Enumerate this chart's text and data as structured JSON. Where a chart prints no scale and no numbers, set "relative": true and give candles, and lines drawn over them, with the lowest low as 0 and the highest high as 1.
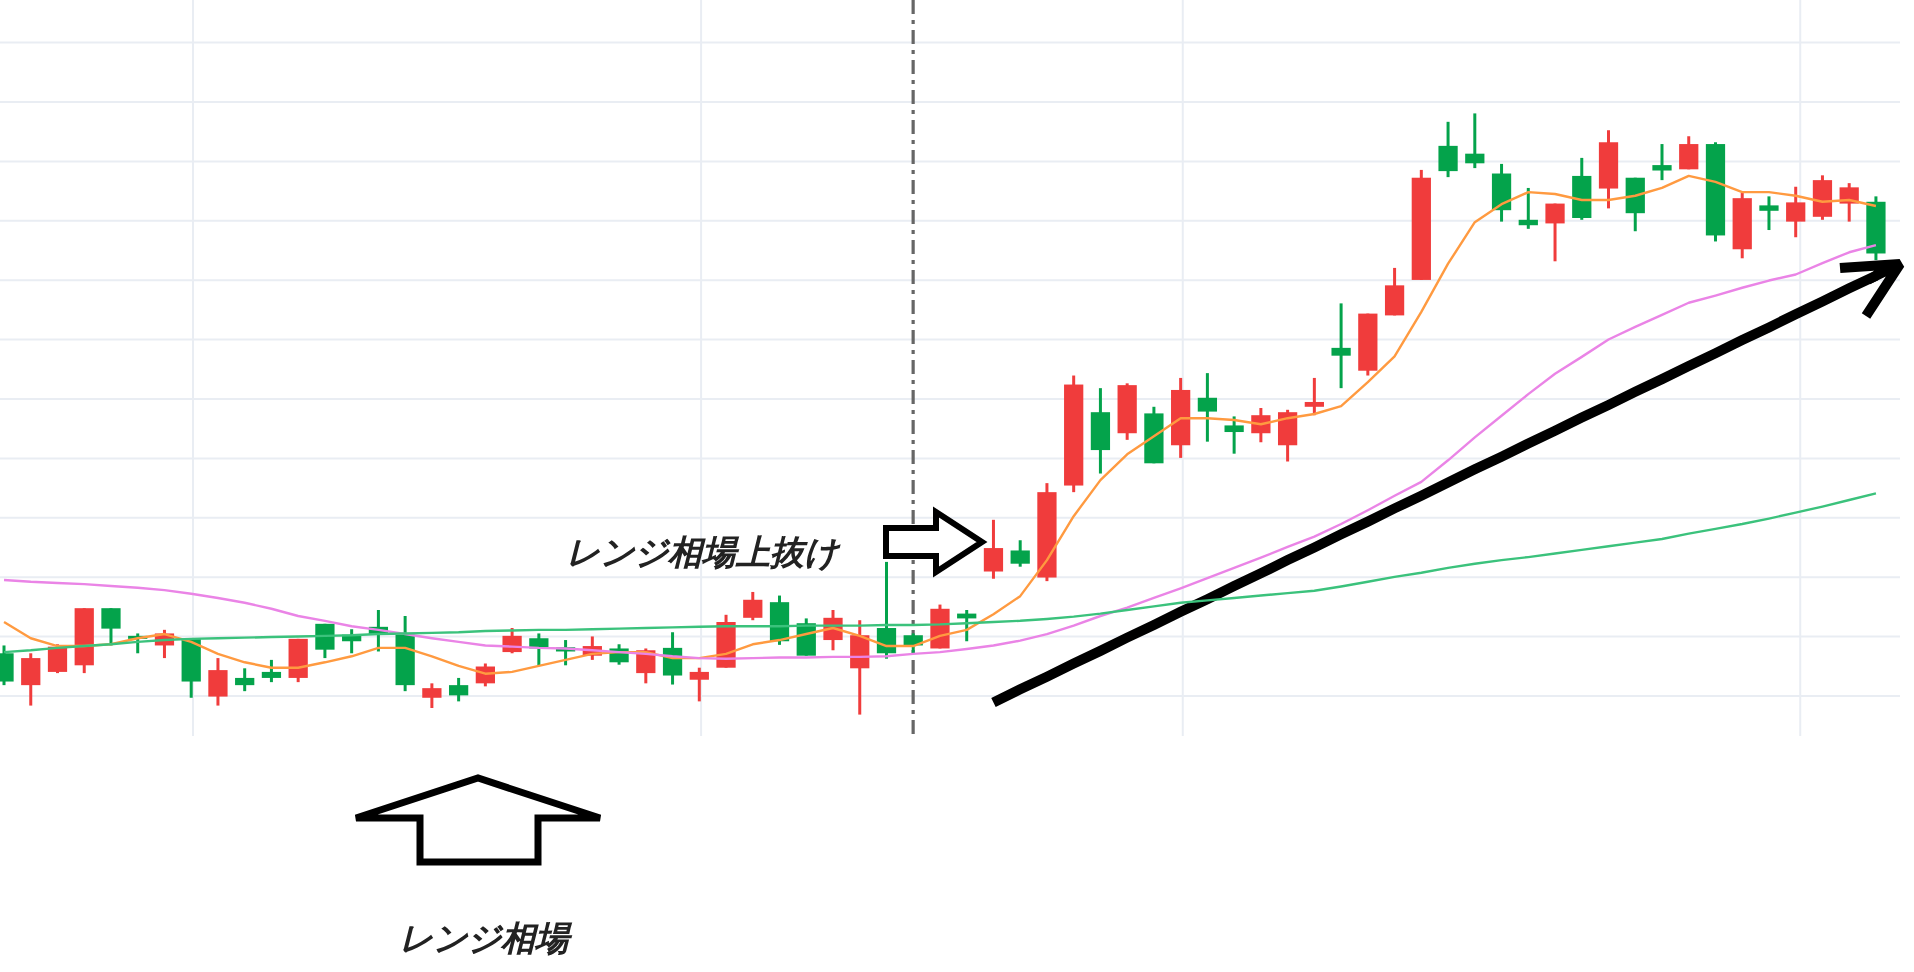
{
  "chart_data": {
    "type": "candlestick",
    "relative": true,
    "grid": true,
    "categories": [
      null,
      null,
      null,
      null,
      null,
      null,
      null,
      null,
      null,
      null,
      null,
      null,
      null,
      null,
      null,
      null,
      null,
      null,
      null,
      null,
      null,
      null,
      null,
      null,
      null,
      null,
      null,
      null,
      null,
      null,
      null,
      null,
      null,
      null,
      null,
      null,
      null,
      null,
      null,
      null,
      null,
      null,
      null,
      null,
      null,
      null,
      null,
      null,
      null,
      null,
      null,
      null,
      null,
      null,
      null,
      null,
      null,
      null,
      null,
      null,
      null,
      null,
      null,
      null,
      null,
      null,
      null,
      null,
      null,
      null,
      null
    ],
    "ohlc": [
      [
        0.102,
        0.115,
        0.049,
        0.055
      ],
      [
        0.049,
        0.102,
        0.015,
        0.094
      ],
      [
        0.071,
        0.117,
        0.069,
        0.113
      ],
      [
        0.082,
        0.177,
        0.069,
        0.177
      ],
      [
        0.177,
        0.177,
        0.115,
        0.143
      ],
      [
        0.131,
        0.135,
        0.102,
        0.127
      ],
      [
        0.115,
        0.141,
        0.094,
        0.135
      ],
      [
        0.126,
        0.126,
        0.028,
        0.055
      ],
      [
        0.03,
        0.094,
        0.015,
        0.074
      ],
      [
        0.061,
        0.077,
        0.039,
        0.049
      ],
      [
        0.071,
        0.091,
        0.054,
        0.061
      ],
      [
        0.061,
        0.126,
        0.054,
        0.126
      ],
      [
        0.151,
        0.151,
        0.094,
        0.108
      ],
      [
        0.133,
        0.142,
        0.102,
        0.122
      ],
      [
        0.146,
        0.174,
        0.105,
        0.133
      ],
      [
        0.133,
        0.164,
        0.039,
        0.049
      ],
      [
        0.028,
        0.052,
        0.011,
        0.044
      ],
      [
        0.049,
        0.061,
        0.022,
        0.032
      ],
      [
        0.052,
        0.085,
        0.047,
        0.08
      ],
      [
        0.104,
        0.144,
        0.102,
        0.131
      ],
      [
        0.127,
        0.135,
        0.082,
        0.11
      ],
      [
        0.112,
        0.124,
        0.082,
        0.105
      ],
      [
        0.098,
        0.13,
        0.091,
        0.114
      ],
      [
        0.11,
        0.117,
        0.083,
        0.087
      ],
      [
        0.069,
        0.11,
        0.052,
        0.107
      ],
      [
        0.111,
        0.137,
        0.05,
        0.065
      ],
      [
        0.058,
        0.078,
        0.022,
        0.071
      ],
      [
        0.078,
        0.166,
        0.078,
        0.154
      ],
      [
        0.161,
        0.204,
        0.157,
        0.191
      ],
      [
        0.187,
        0.198,
        0.116,
        0.122
      ],
      [
        0.152,
        0.16,
        0.098,
        0.098
      ],
      [
        0.124,
        0.174,
        0.107,
        0.161
      ],
      [
        0.077,
        0.157,
        0,
        0.132
      ],
      [
        0.144,
        0.254,
        0.093,
        0.102
      ],
      [
        0.132,
        0.135,
        0.102,
        0.115
      ],
      [
        0.11,
        0.183,
        0.11,
        0.176
      ],
      [
        0.168,
        0.174,
        0.122,
        0.16
      ],
      [
        0.238,
        0.324,
        0.226,
        0.277
      ],
      [
        0.273,
        0.29,
        0.246,
        0.251
      ],
      [
        0.228,
        0.385,
        0.222,
        0.37
      ],
      [
        0.381,
        0.564,
        0.37,
        0.549
      ],
      [
        0.503,
        0.543,
        0.401,
        0.44
      ],
      [
        0.468,
        0.551,
        0.457,
        0.548
      ],
      [
        0.501,
        0.512,
        0.418,
        0.418
      ],
      [
        0.448,
        0.56,
        0.427,
        0.54
      ],
      [
        0.527,
        0.568,
        0.454,
        0.504
      ],
      [
        0.481,
        0.496,
        0.434,
        0.47
      ],
      [
        0.468,
        0.51,
        0.453,
        0.498
      ],
      [
        0.448,
        0.507,
        0.421,
        0.503
      ],
      [
        0.512,
        0.56,
        0.498,
        0.52
      ],
      [
        0.61,
        0.684,
        0.543,
        0.597
      ],
      [
        0.572,
        0.667,
        0.564,
        0.667
      ],
      [
        0.664,
        0.743,
        0.664,
        0.714
      ],
      [
        0.723,
        0.906,
        0.723,
        0.893
      ],
      [
        0.946,
        0.986,
        0.894,
        0.904
      ],
      [
        0.933,
        1,
        0.909,
        0.917
      ],
      [
        0.9,
        0.916,
        0.82,
        0.839
      ],
      [
        0.823,
        0.876,
        0.808,
        0.814
      ],
      [
        0.817,
        0.85,
        0.754,
        0.85
      ],
      [
        0.896,
        0.926,
        0.823,
        0.826
      ],
      [
        0.875,
        0.972,
        0.842,
        0.952
      ],
      [
        0.893,
        0.893,
        0.804,
        0.834
      ],
      [
        0.914,
        0.949,
        0.889,
        0.905
      ],
      [
        0.907,
        0.962,
        0.907,
        0.949
      ],
      [
        0.949,
        0.952,
        0.787,
        0.797
      ],
      [
        0.774,
        0.868,
        0.759,
        0.859
      ],
      [
        0.847,
        0.862,
        0.806,
        0.838
      ],
      [
        0.82,
        0.878,
        0.794,
        0.852
      ],
      [
        0.828,
        0.897,
        0.823,
        0.889
      ],
      [
        0.85,
        0.884,
        0.82,
        0.877
      ],
      [
        0.853,
        0.862,
        0.756,
        0.767
      ]
    ],
    "colors": [
      "#04a34b",
      "#f03c3c",
      "#f03c3c",
      "#f03c3c",
      "#04a34b",
      "#04a34b",
      "#f03c3c",
      "#04a34b",
      "#f03c3c",
      "#04a34b",
      "#04a34b",
      "#f03c3c",
      "#04a34b",
      "#04a34b",
      "#04a34b",
      "#04a34b",
      "#f03c3c",
      "#04a34b",
      "#f03c3c",
      "#f03c3c",
      "#04a34b",
      "#04a34b",
      "#f03c3c",
      "#04a34b",
      "#f03c3c",
      "#04a34b",
      "#f03c3c",
      "#f03c3c",
      "#f03c3c",
      "#04a34b",
      "#04a34b",
      "#f03c3c",
      "#f03c3c",
      "#04a34b",
      "#04a34b",
      "#f03c3c",
      "#04a34b",
      "#f03c3c",
      "#04a34b",
      "#f03c3c",
      "#f03c3c",
      "#04a34b",
      "#f03c3c",
      "#04a34b",
      "#f03c3c",
      "#04a34b",
      "#04a34b",
      "#f03c3c",
      "#f03c3c",
      "#f03c3c",
      "#04a34b",
      "#f03c3c",
      "#f03c3c",
      "#f03c3c",
      "#04a34b",
      "#04a34b",
      "#04a34b",
      "#04a34b",
      "#f03c3c",
      "#04a34b",
      "#f03c3c",
      "#04a34b",
      "#04a34b",
      "#f03c3c",
      "#04a34b",
      "#f03c3c",
      "#04a34b",
      "#f03c3c",
      "#f03c3c",
      "#f03c3c",
      "#04a34b"
    ],
    "series": [
      {
        "type": "line",
        "color": "#000000",
        "values": [
          null,
          null,
          null,
          null,
          null,
          null,
          null,
          null,
          null,
          null,
          null,
          null,
          null,
          null,
          null,
          null,
          null,
          null,
          null,
          null,
          null,
          null,
          null,
          null,
          null,
          null,
          null,
          null,
          null,
          null,
          null,
          null,
          null,
          null,
          null,
          null,
          null,
          0.02,
          0.042,
          0.063,
          0.085,
          0.106,
          0.128,
          0.149,
          0.171,
          0.192,
          0.214,
          0.235,
          0.257,
          0.278,
          0.3,
          0.321,
          0.343,
          0.364,
          0.386,
          0.408,
          0.429,
          0.451,
          0.472,
          0.494,
          0.515,
          0.537,
          0.558,
          0.58,
          0.601,
          0.623,
          0.644,
          0.666,
          0.687,
          0.709,
          0.73
        ]
      },
      {
        "type": "line",
        "color": "#ff9a40",
        "values": [
          0.154,
          0.127,
          0.114,
          0.114,
          0.117,
          0.127,
          0.134,
          0.121,
          0.101,
          0.087,
          0.078,
          0.078,
          0.087,
          0.097,
          0.111,
          0.111,
          0.097,
          0.081,
          0.068,
          0.071,
          0.081,
          0.091,
          0.101,
          0.104,
          0.104,
          0.094,
          0.094,
          0.101,
          0.117,
          0.124,
          0.134,
          0.144,
          0.131,
          0.114,
          0.114,
          0.131,
          0.141,
          0.167,
          0.197,
          0.257,
          0.33,
          0.39,
          0.433,
          0.463,
          0.493,
          0.493,
          0.49,
          0.483,
          0.493,
          0.5,
          0.513,
          0.553,
          0.596,
          0.67,
          0.75,
          0.819,
          0.849,
          0.869,
          0.866,
          0.856,
          0.856,
          0.863,
          0.876,
          0.896,
          0.886,
          0.869,
          0.869,
          0.863,
          0.853,
          0.856,
          0.846
        ]
      },
      {
        "type": "line",
        "color": "#ea84e6",
        "values": [
          0.224,
          0.221,
          0.219,
          0.217,
          0.214,
          0.211,
          0.207,
          0.201,
          0.194,
          0.186,
          0.176,
          0.164,
          0.156,
          0.147,
          0.141,
          0.134,
          0.127,
          0.121,
          0.115,
          0.113,
          0.111,
          0.11,
          0.107,
          0.104,
          0.101,
          0.097,
          0.094,
          0.093,
          0.094,
          0.095,
          0.095,
          0.096,
          0.096,
          0.097,
          0.101,
          0.104,
          0.109,
          0.115,
          0.123,
          0.134,
          0.148,
          0.164,
          0.178,
          0.194,
          0.21,
          0.227,
          0.244,
          0.261,
          0.279,
          0.296,
          0.317,
          0.34,
          0.364,
          0.387,
          0.423,
          0.461,
          0.497,
          0.533,
          0.567,
          0.595,
          0.624,
          0.645,
          0.665,
          0.685,
          0.697,
          0.71,
          0.722,
          0.732,
          0.751,
          0.769,
          0.781
        ]
      },
      {
        "type": "line",
        "color": "#3bc27c",
        "values": [
          0.104,
          0.107,
          0.111,
          0.114,
          0.117,
          0.121,
          0.124,
          0.126,
          0.127,
          0.128,
          0.129,
          0.13,
          0.131,
          0.132,
          0.134,
          0.135,
          0.136,
          0.137,
          0.139,
          0.14,
          0.141,
          0.141,
          0.142,
          0.143,
          0.144,
          0.145,
          0.146,
          0.147,
          0.147,
          0.147,
          0.148,
          0.148,
          0.148,
          0.149,
          0.149,
          0.15,
          0.152,
          0.154,
          0.156,
          0.159,
          0.163,
          0.168,
          0.174,
          0.18,
          0.186,
          0.19,
          0.194,
          0.198,
          0.202,
          0.206,
          0.213,
          0.221,
          0.229,
          0.236,
          0.244,
          0.251,
          0.257,
          0.262,
          0.268,
          0.274,
          0.28,
          0.286,
          0.292,
          0.301,
          0.309,
          0.317,
          0.326,
          0.336,
          0.346,
          0.357,
          0.368
        ]
      }
    ],
    "annotations": [
      "レンジ相場上抜け",
      "レンジ相場"
    ]
  }
}
